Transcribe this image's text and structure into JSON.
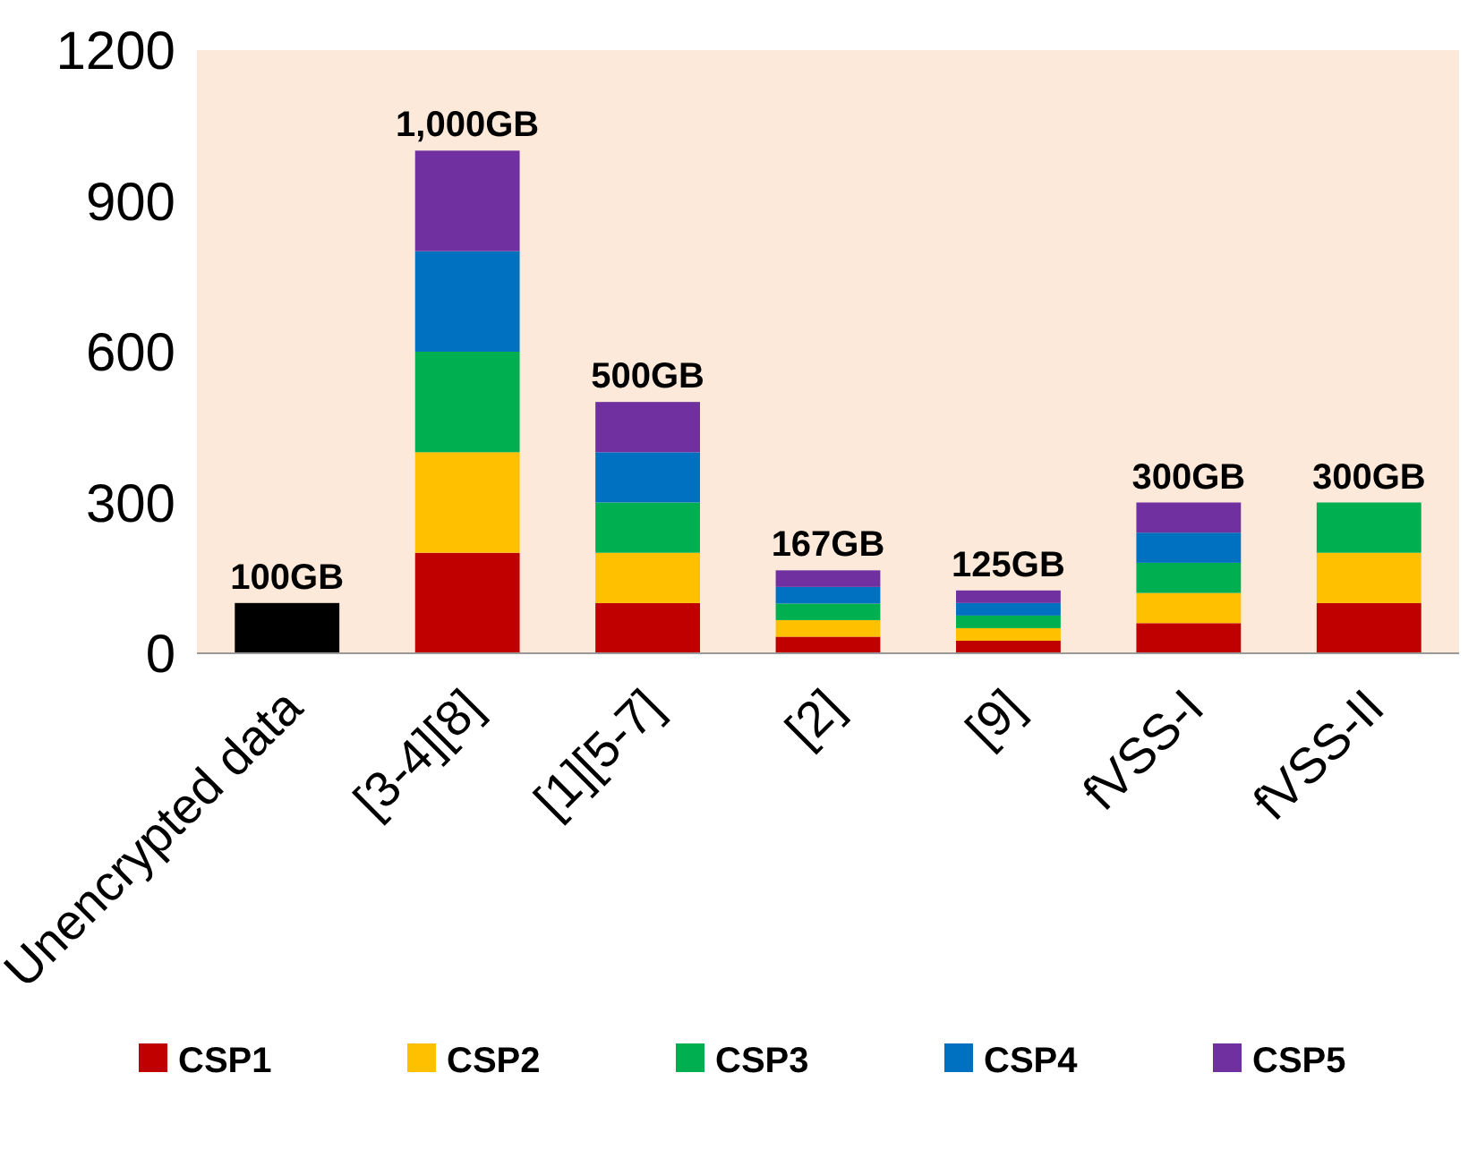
{
  "chart_data": {
    "type": "bar",
    "stacked": true,
    "categories": [
      "Unencrypted data",
      "[3-4][8]",
      "[1][5-7]",
      "[2]",
      "[9]",
      "fVSS-I",
      "fVSS-II"
    ],
    "series": [
      {
        "color": "#000000",
        "values": [
          100,
          null,
          null,
          null,
          null,
          null,
          null
        ]
      },
      {
        "name": "CSP1",
        "color": "#c00000",
        "values": [
          null,
          200,
          100,
          33,
          25,
          60,
          100
        ]
      },
      {
        "name": "CSP2",
        "color": "#ffc000",
        "values": [
          null,
          200,
          100,
          33,
          25,
          60,
          100
        ]
      },
      {
        "name": "CSP3",
        "color": "#00b050",
        "values": [
          null,
          200,
          100,
          33,
          25,
          60,
          100
        ]
      },
      {
        "name": "CSP4",
        "color": "#0070c0",
        "values": [
          null,
          200,
          100,
          33,
          25,
          60,
          0
        ]
      },
      {
        "name": "CSP5",
        "color": "#7030a0",
        "values": [
          null,
          200,
          100,
          33,
          25,
          60,
          0
        ]
      }
    ],
    "totals": [
      "100GB",
      "1,000GB",
      "500GB",
      "167GB",
      "125GB",
      "300GB",
      "300GB"
    ],
    "ylim": [
      0,
      1200
    ],
    "yticks": [
      0,
      300,
      600,
      900,
      1200
    ],
    "grid": false,
    "legend": "bottom"
  }
}
